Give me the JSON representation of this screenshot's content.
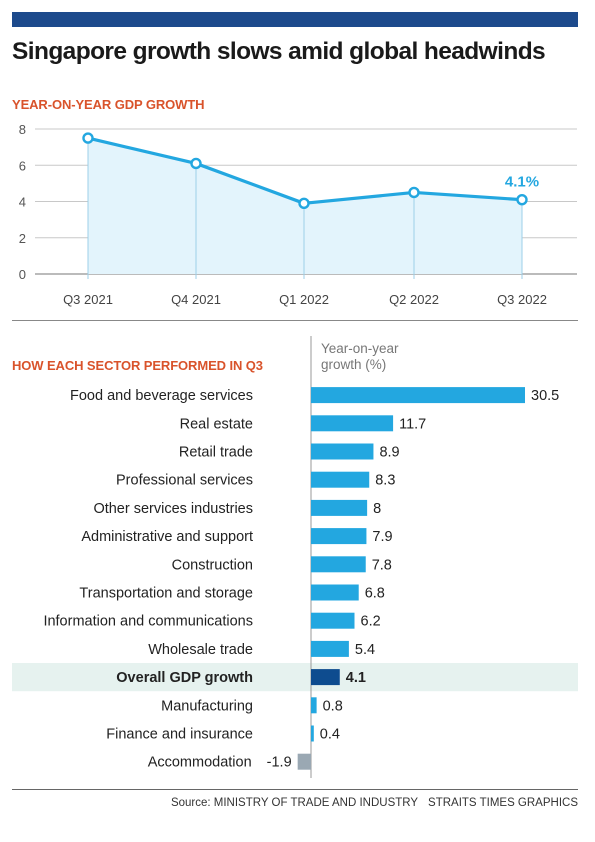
{
  "headline": "Singapore growth slows amid global headwinds",
  "colors": {
    "top_bar": "#1d4a8c",
    "accent_red": "#d9532b",
    "line": "#23a7e0",
    "area_fill": "#e3f4fc",
    "bar": "#23a7e0",
    "bar_overall": "#0e4c8f",
    "bar_negative": "#9aa8b3",
    "highlight_row": "#e6f2ef",
    "grid": "#c8c8c8"
  },
  "chart_data": [
    {
      "type": "area",
      "title": "YEAR-ON-YEAR GDP GROWTH",
      "xlabel": "",
      "ylabel": "",
      "categories": [
        "Q3 2021",
        "Q4 2021",
        "Q1 2022",
        "Q2 2022",
        "Q3 2022"
      ],
      "values": [
        7.5,
        6.1,
        3.9,
        4.5,
        4.1
      ],
      "ylim": [
        0,
        8
      ],
      "yticks": [
        "0",
        "2",
        "4",
        "6",
        "8"
      ],
      "grid": true,
      "annotations": [
        {
          "category": "Q3 2022",
          "text": "4.1%"
        }
      ]
    },
    {
      "type": "bar",
      "orientation": "horizontal",
      "title": "HOW EACH SECTOR PERFORMED IN Q3",
      "value_label": "Year-on-year growth (%)",
      "categories": [
        "Food and beverage services",
        "Real estate",
        "Retail trade",
        "Professional services",
        "Other services industries",
        "Administrative and support",
        "Construction",
        "Transportation and storage",
        "Information and communications",
        "Wholesale trade",
        "Overall GDP growth",
        "Manufacturing",
        "Finance and insurance",
        "Accommodation"
      ],
      "values": [
        30.5,
        11.7,
        8.9,
        8.3,
        8,
        7.9,
        7.8,
        6.8,
        6.2,
        5.4,
        4.1,
        0.8,
        0.4,
        -1.9
      ],
      "value_labels": [
        "30.5",
        "11.7",
        "8.9",
        "8.3",
        "8",
        "7.9",
        "7.8",
        "6.8",
        "6.2",
        "5.4",
        "4.1",
        "0.8",
        "0.4",
        "-1.9"
      ],
      "highlighted": "Overall GDP growth"
    }
  ],
  "source": {
    "text": "Source: MINISTRY OF TRADE AND INDUSTRY",
    "credit": "STRAITS TIMES GRAPHICS"
  }
}
